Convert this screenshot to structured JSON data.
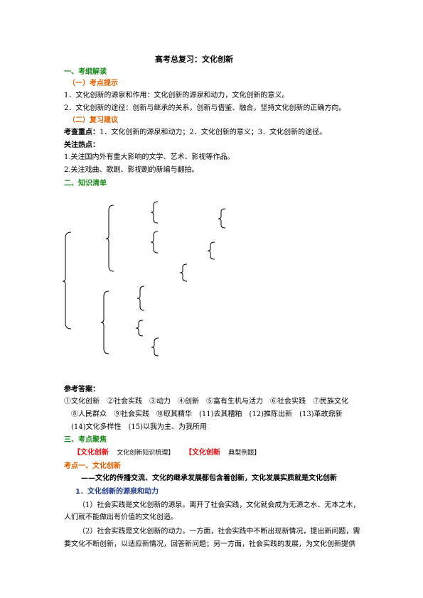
{
  "title": "高考总复习：文化创新",
  "s1": {
    "heading": "一、考纲解读",
    "sub1": "（一）考点提示",
    "p1": "1．文化创新的源泉和作用：文化创新的源泉和动力，文化创新的意义。",
    "p2": "2．文化创新的途径：创新与继承的关系，创新与借鉴、融合，坚持文化创新的正确方向。",
    "sub2": "（二）复习建议",
    "key_label": "考查重点：",
    "key_text": "1．文化创新的源泉和动力；2．文化创新的意义；3．文化创新的途径。",
    "hot_label": "关注热点：",
    "hot1": "1.关注国内外有重大影响的文学、艺术、影视等作品。",
    "hot2": "2.关注戏曲、歌剧、影视剧的新编与翻拍。"
  },
  "s2": {
    "heading": "二、知识清单"
  },
  "answers": {
    "label": "参考答案：",
    "line1": "①文化创新　②社会实践　③动力　④创新　⑤富有生机与活力　⑥社会实践　⑦民族文化",
    "line2": "⑧人民群众　⑨社会实践　⑩取其精华　(11)去其糟粕　(12)推陈出新　(13)革故鼎新",
    "line3": "(14)文化多样性　(15)以我为主、为我所用"
  },
  "s3": {
    "heading": "三、考点聚焦",
    "link1_tag": "【文化创新",
    "link1_text": "文化创新知识梳理】",
    "link2_tag": "【文化创新",
    "link2_text": "典型例题】",
    "kp1": "考点一、文化创新",
    "subtitle": "——文化的传播交流、文化的继承发展都包含着创新，文化发展实质就是文化创新",
    "item1": "1．文化创新的源泉和动力",
    "para1a": "（1）社会实践是文化创新的源泉。离开了社会实践，文化就会成为无源之水、无本之木，",
    "para1b": "人们就不能做出有价值的文化创造。",
    "para2a": "（2）社会实践是文化创新的动力。一方面，社会实践中不断出现新情况，提出新问题，需",
    "para2b": "要文化不断创新，以适应新情况，回答新问题；另一方面，社会实践的发展，为文化创新提供"
  }
}
